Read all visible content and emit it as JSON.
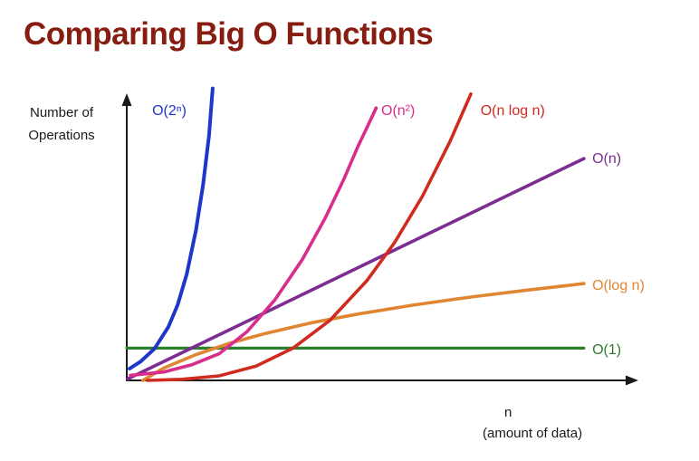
{
  "page": {
    "title": "Comparing Big O Functions"
  },
  "colors": {
    "title": "#871c10",
    "axis": "#1a1a1a",
    "background": "#ffffff"
  },
  "axes": {
    "y_label_line1": "Number of",
    "y_label_line2": "Operations",
    "x_label_line1": "n",
    "x_label_line2": "(amount of data)"
  },
  "chart_data": {
    "type": "line",
    "title": "Comparing Big O Functions",
    "xlabel": "n (amount of data)",
    "ylabel": "Number of Operations",
    "x_range": [
      0,
      1
    ],
    "y_range": [
      0,
      1
    ],
    "grid": false,
    "legend_position": "inline-labels-on-curves",
    "note": "Conceptual chart: axes have no numeric ticks; points are normalized (0-1) relative growth shapes read from the figure",
    "series": [
      {
        "id": "o-2-n",
        "name": "O(2ⁿ)",
        "color": "#1e36c9",
        "width": 4,
        "label_pos": [
          0.055,
          0.945
        ],
        "points": [
          [
            0.006,
            0.042
          ],
          [
            0.03,
            0.067
          ],
          [
            0.06,
            0.113
          ],
          [
            0.09,
            0.19
          ],
          [
            0.11,
            0.268
          ],
          [
            0.13,
            0.379
          ],
          [
            0.15,
            0.536
          ],
          [
            0.165,
            0.695
          ],
          [
            0.178,
            0.87
          ],
          [
            0.186,
            1.04
          ]
        ]
      },
      {
        "id": "o-n-2",
        "name": "O(n²)",
        "color": "#d82d8b",
        "width": 3.6,
        "label_pos": [
          0.551,
          0.945
        ],
        "points": [
          [
            0.008,
            0.018
          ],
          [
            0.08,
            0.03
          ],
          [
            0.14,
            0.055
          ],
          [
            0.2,
            0.095
          ],
          [
            0.26,
            0.173
          ],
          [
            0.32,
            0.285
          ],
          [
            0.38,
            0.43
          ],
          [
            0.43,
            0.579
          ],
          [
            0.47,
            0.716
          ],
          [
            0.5,
            0.831
          ],
          [
            0.52,
            0.9
          ],
          [
            0.54,
            0.97
          ]
        ]
      },
      {
        "id": "o-n-log-n",
        "name": "O(n log n)",
        "color": "#cf2b20",
        "width": 3.6,
        "label_pos": [
          0.766,
          0.945
        ],
        "points": [
          [
            0.045,
            0.0
          ],
          [
            0.12,
            0.004
          ],
          [
            0.2,
            0.016
          ],
          [
            0.28,
            0.051
          ],
          [
            0.36,
            0.115
          ],
          [
            0.44,
            0.214
          ],
          [
            0.52,
            0.355
          ],
          [
            0.58,
            0.491
          ],
          [
            0.64,
            0.655
          ],
          [
            0.7,
            0.851
          ],
          [
            0.745,
            1.02
          ]
        ]
      },
      {
        "id": "o-n",
        "name": "O(n)",
        "color": "#7c2d92",
        "width": 3.6,
        "label_pos": [
          1.008,
          0.774
        ],
        "points": [
          [
            0.002,
            0.005
          ],
          [
            0.99,
            0.79
          ]
        ]
      },
      {
        "id": "o-log-n",
        "name": "O(log n)",
        "color": "#e08532",
        "width": 3.6,
        "label_pos": [
          1.008,
          0.323
        ],
        "points": [
          [
            0.035,
            0.0
          ],
          [
            0.08,
            0.044
          ],
          [
            0.15,
            0.092
          ],
          [
            0.22,
            0.131
          ],
          [
            0.3,
            0.167
          ],
          [
            0.4,
            0.205
          ],
          [
            0.5,
            0.236
          ],
          [
            0.62,
            0.268
          ],
          [
            0.75,
            0.298
          ],
          [
            0.87,
            0.322
          ],
          [
            0.99,
            0.345
          ]
        ]
      },
      {
        "id": "o-1",
        "name": "O(1)",
        "color": "#2b7f2b",
        "width": 3.2,
        "label_pos": [
          1.008,
          0.094
        ],
        "points": [
          [
            0.0,
            0.115
          ],
          [
            0.99,
            0.115
          ]
        ]
      }
    ]
  }
}
